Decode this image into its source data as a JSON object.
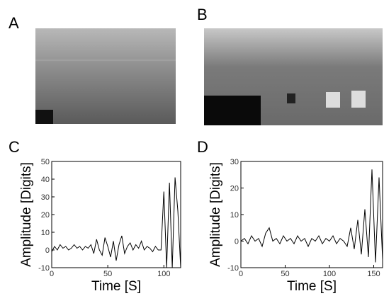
{
  "panel_labels": [
    "A",
    "B",
    "C",
    "D"
  ],
  "chart_data": [
    {
      "type": "line",
      "x_label": "Time [S]",
      "y_label": "Amplitude [Digits]",
      "x": [
        0,
        2.5,
        5,
        7.5,
        10,
        12.5,
        15,
        17.5,
        20,
        22.5,
        25,
        27.5,
        30,
        32.5,
        35,
        37.5,
        40,
        42.5,
        45,
        47.5,
        50,
        52.5,
        55,
        57.5,
        60,
        62.5,
        65,
        67.5,
        70,
        72.5,
        75,
        77.5,
        80,
        82.5,
        85,
        87.5,
        90,
        92.5,
        95,
        97.5,
        100,
        102.5,
        105,
        107.5,
        110,
        112.5,
        115
      ],
      "values": [
        -1,
        2,
        0,
        3,
        1,
        2,
        0,
        1,
        3,
        1,
        2,
        0,
        2,
        1,
        3,
        -2,
        6,
        0,
        -3,
        7,
        2,
        -4,
        5,
        -6,
        3,
        8,
        -2,
        2,
        4,
        0,
        3,
        1,
        5,
        0,
        2,
        1,
        -1,
        2,
        0,
        0,
        33,
        -10,
        38,
        -10,
        41,
        22,
        -10
      ],
      "color": "#000000",
      "xlim": [
        0,
        115
      ],
      "xticks": [
        0,
        50,
        100
      ],
      "ylim": [
        -10,
        50
      ],
      "yticks": [
        -10,
        0,
        10,
        20,
        30,
        40,
        50
      ]
    },
    {
      "type": "line",
      "x_label": "Time [S]",
      "y_label": "Amplitude [Digits]",
      "x": [
        0,
        4,
        8,
        12,
        16,
        20,
        24,
        28,
        32,
        36,
        40,
        44,
        48,
        52,
        56,
        60,
        64,
        68,
        72,
        76,
        80,
        84,
        88,
        92,
        96,
        100,
        104,
        108,
        112,
        116,
        120,
        124,
        128,
        132,
        136,
        140,
        144,
        148,
        152,
        156,
        160
      ],
      "values": [
        0,
        1,
        -1,
        2,
        0,
        1,
        -2,
        3,
        5,
        0,
        1,
        -1,
        2,
        0,
        1,
        -1,
        2,
        0,
        1,
        -2,
        1,
        0,
        2,
        -1,
        1,
        0,
        2,
        -1,
        1,
        0,
        -2,
        5,
        -3,
        8,
        -5,
        12,
        -6,
        27,
        -8,
        24,
        -7
      ],
      "color": "#000000",
      "xlim": [
        0,
        160
      ],
      "xticks": [
        0,
        50,
        100,
        150
      ],
      "ylim": [
        -10,
        30
      ],
      "yticks": [
        -10,
        0,
        10,
        20,
        30
      ]
    }
  ]
}
